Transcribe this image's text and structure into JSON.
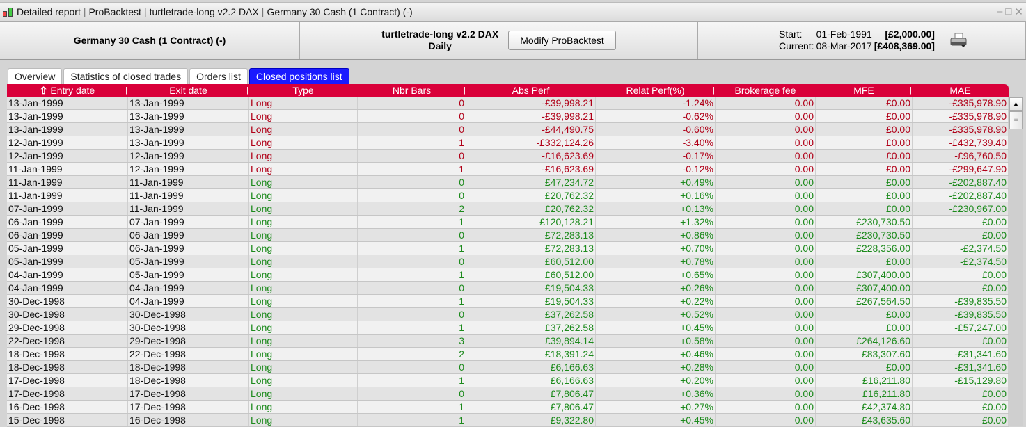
{
  "window": {
    "title_parts": [
      "Detailed report",
      "ProBacktest",
      "turtletrade-long v2.2 DAX",
      "Germany 30 Cash (1 Contract) (-)"
    ],
    "minimize_icon": "minimize-icon",
    "maximize_icon": "maximize-icon",
    "close_icon": "close-icon"
  },
  "header": {
    "instrument": "Germany 30 Cash (1 Contract) (-)",
    "strategy": "turtletrade-long v2.2 DAX",
    "timeframe": "Daily",
    "modify_button": "Modify ProBacktest",
    "start_label": "Start:",
    "start_date": "01-Feb-1991",
    "start_value": "[£2,000.00]",
    "current_label": "Current:",
    "current_date": "08-Mar-2017",
    "current_value": "[£408,369.00]",
    "print_icon": "printer-icon"
  },
  "tabs": [
    {
      "label": "Overview"
    },
    {
      "label": "Statistics of closed trades"
    },
    {
      "label": "Orders list"
    },
    {
      "label": "Closed positions list",
      "active": true
    }
  ],
  "colors": {
    "header_red": "#d9003a",
    "active_tab": "#1a1aff",
    "negative": "#b00018",
    "positive": "#1c8a1c"
  },
  "table": {
    "sort_icon": "sort-up-arrow-icon",
    "columns": [
      "Entry date",
      "Exit date",
      "Type",
      "Nbr Bars",
      "Abs Perf",
      "Relat Perf(%)",
      "Brokerage fee",
      "MFE",
      "MAE"
    ],
    "rows": [
      [
        "13-Jan-1999",
        "13-Jan-1999",
        "Long",
        "0",
        "-£39,998.21",
        "-1.24%",
        "0.00",
        "£0.00",
        "-£335,978.90"
      ],
      [
        "13-Jan-1999",
        "13-Jan-1999",
        "Long",
        "0",
        "-£39,998.21",
        "-0.62%",
        "0.00",
        "£0.00",
        "-£335,978.90"
      ],
      [
        "13-Jan-1999",
        "13-Jan-1999",
        "Long",
        "0",
        "-£44,490.75",
        "-0.60%",
        "0.00",
        "£0.00",
        "-£335,978.90"
      ],
      [
        "12-Jan-1999",
        "13-Jan-1999",
        "Long",
        "1",
        "-£332,124.26",
        "-3.40%",
        "0.00",
        "£0.00",
        "-£432,739.40"
      ],
      [
        "12-Jan-1999",
        "12-Jan-1999",
        "Long",
        "0",
        "-£16,623.69",
        "-0.17%",
        "0.00",
        "£0.00",
        "-£96,760.50"
      ],
      [
        "11-Jan-1999",
        "12-Jan-1999",
        "Long",
        "1",
        "-£16,623.69",
        "-0.12%",
        "0.00",
        "£0.00",
        "-£299,647.90"
      ],
      [
        "11-Jan-1999",
        "11-Jan-1999",
        "Long",
        "0",
        "£47,234.72",
        "+0.49%",
        "0.00",
        "£0.00",
        "-£202,887.40"
      ],
      [
        "11-Jan-1999",
        "11-Jan-1999",
        "Long",
        "0",
        "£20,762.32",
        "+0.16%",
        "0.00",
        "£0.00",
        "-£202,887.40"
      ],
      [
        "07-Jan-1999",
        "11-Jan-1999",
        "Long",
        "2",
        "£20,762.32",
        "+0.13%",
        "0.00",
        "£0.00",
        "-£230,967.00"
      ],
      [
        "06-Jan-1999",
        "07-Jan-1999",
        "Long",
        "1",
        "£120,128.21",
        "+1.32%",
        "0.00",
        "£230,730.50",
        "£0.00"
      ],
      [
        "06-Jan-1999",
        "06-Jan-1999",
        "Long",
        "0",
        "£72,283.13",
        "+0.86%",
        "0.00",
        "£230,730.50",
        "£0.00"
      ],
      [
        "05-Jan-1999",
        "06-Jan-1999",
        "Long",
        "1",
        "£72,283.13",
        "+0.70%",
        "0.00",
        "£228,356.00",
        "-£2,374.50"
      ],
      [
        "05-Jan-1999",
        "05-Jan-1999",
        "Long",
        "0",
        "£60,512.00",
        "+0.78%",
        "0.00",
        "£0.00",
        "-£2,374.50"
      ],
      [
        "04-Jan-1999",
        "05-Jan-1999",
        "Long",
        "1",
        "£60,512.00",
        "+0.65%",
        "0.00",
        "£307,400.00",
        "£0.00"
      ],
      [
        "04-Jan-1999",
        "04-Jan-1999",
        "Long",
        "0",
        "£19,504.33",
        "+0.26%",
        "0.00",
        "£307,400.00",
        "£0.00"
      ],
      [
        "30-Dec-1998",
        "04-Jan-1999",
        "Long",
        "1",
        "£19,504.33",
        "+0.22%",
        "0.00",
        "£267,564.50",
        "-£39,835.50"
      ],
      [
        "30-Dec-1998",
        "30-Dec-1998",
        "Long",
        "0",
        "£37,262.58",
        "+0.52%",
        "0.00",
        "£0.00",
        "-£39,835.50"
      ],
      [
        "29-Dec-1998",
        "30-Dec-1998",
        "Long",
        "1",
        "£37,262.58",
        "+0.45%",
        "0.00",
        "£0.00",
        "-£57,247.00"
      ],
      [
        "22-Dec-1998",
        "29-Dec-1998",
        "Long",
        "3",
        "£39,894.14",
        "+0.58%",
        "0.00",
        "£264,126.60",
        "£0.00"
      ],
      [
        "18-Dec-1998",
        "22-Dec-1998",
        "Long",
        "2",
        "£18,391.24",
        "+0.46%",
        "0.00",
        "£83,307.60",
        "-£31,341.60"
      ],
      [
        "18-Dec-1998",
        "18-Dec-1998",
        "Long",
        "0",
        "£6,166.63",
        "+0.28%",
        "0.00",
        "£0.00",
        "-£31,341.60"
      ],
      [
        "17-Dec-1998",
        "18-Dec-1998",
        "Long",
        "1",
        "£6,166.63",
        "+0.20%",
        "0.00",
        "£16,211.80",
        "-£15,129.80"
      ],
      [
        "17-Dec-1998",
        "17-Dec-1998",
        "Long",
        "0",
        "£7,806.47",
        "+0.36%",
        "0.00",
        "£16,211.80",
        "£0.00"
      ],
      [
        "16-Dec-1998",
        "17-Dec-1998",
        "Long",
        "1",
        "£7,806.47",
        "+0.27%",
        "0.00",
        "£42,374.80",
        "£0.00"
      ],
      [
        "15-Dec-1998",
        "16-Dec-1998",
        "Long",
        "1",
        "£9,322.80",
        "+0.45%",
        "0.00",
        "£43,635.60",
        "£0.00"
      ]
    ]
  }
}
